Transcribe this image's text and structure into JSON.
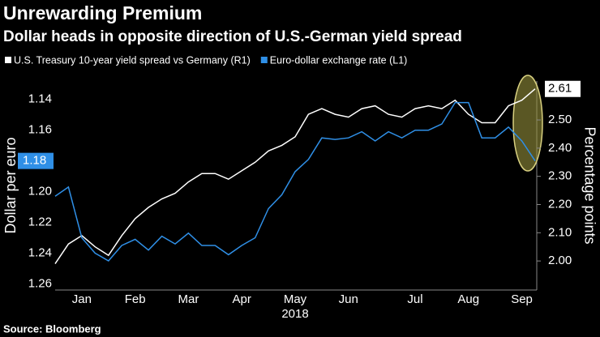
{
  "chart_data": {
    "type": "line",
    "title": "Unrewarding Premium",
    "subtitle": "Dollar heads in opposite direction of U.S.-German yield spread",
    "source": "Source: Bloomberg",
    "x_label": "2018",
    "ylabel": "Dollar per euro",
    "y2label": "Percentage points",
    "categories": [
      null,
      null,
      "Jan",
      null,
      null,
      null,
      "Feb",
      null,
      null,
      null,
      "Mar",
      null,
      null,
      null,
      "Apr",
      null,
      null,
      null,
      "May",
      null,
      null,
      null,
      "Jun",
      null,
      null,
      null,
      null,
      "Jul",
      null,
      null,
      null,
      "Aug",
      null,
      null,
      null,
      "Sep",
      null
    ],
    "series": [
      {
        "name": "U.S. Treasury 10-year yield spread vs Germany (R1)",
        "color": "#ffffff",
        "axis": "y2",
        "last_label": "2.61",
        "values": [
          1.99,
          2.06,
          2.09,
          2.05,
          2.02,
          2.09,
          2.15,
          2.19,
          2.22,
          2.24,
          2.28,
          2.31,
          2.31,
          2.29,
          2.32,
          2.35,
          2.39,
          2.41,
          2.44,
          2.52,
          2.54,
          2.52,
          2.51,
          2.54,
          2.55,
          2.52,
          2.51,
          2.54,
          2.55,
          2.54,
          2.57,
          2.52,
          2.49,
          2.49,
          2.55,
          2.57,
          2.61
        ]
      },
      {
        "name": "Euro-dollar exchange rate (L1)",
        "color": "#2f8fe6",
        "axis": "y",
        "last_label": "1.18",
        "values": [
          1.203,
          1.197,
          1.23,
          1.24,
          1.245,
          1.235,
          1.231,
          1.238,
          1.229,
          1.234,
          1.227,
          1.235,
          1.235,
          1.241,
          1.235,
          1.23,
          1.211,
          1.202,
          1.187,
          1.179,
          1.165,
          1.166,
          1.165,
          1.161,
          1.167,
          1.161,
          1.165,
          1.16,
          1.16,
          1.156,
          1.142,
          1.142,
          1.165,
          1.165,
          1.158,
          1.167,
          1.18
        ]
      }
    ],
    "ylim": [
      1.264,
      1.128
    ],
    "yticks": [
      1.14,
      1.16,
      {
        "value": 1.2,
        "label": "1.20"
      },
      1.22,
      1.24,
      1.26
    ],
    "y2lim": [
      1.897,
      2.638
    ],
    "y2ticks": [
      {
        "value": 2.0,
        "label": "2.00"
      },
      {
        "value": 2.1,
        "label": "2.10"
      },
      {
        "value": 2.2,
        "label": "2.20"
      },
      {
        "value": 2.3,
        "label": "2.30"
      },
      {
        "value": 2.4,
        "label": "2.40"
      },
      {
        "value": 2.5,
        "label": "2.50"
      }
    ],
    "grid": false
  }
}
